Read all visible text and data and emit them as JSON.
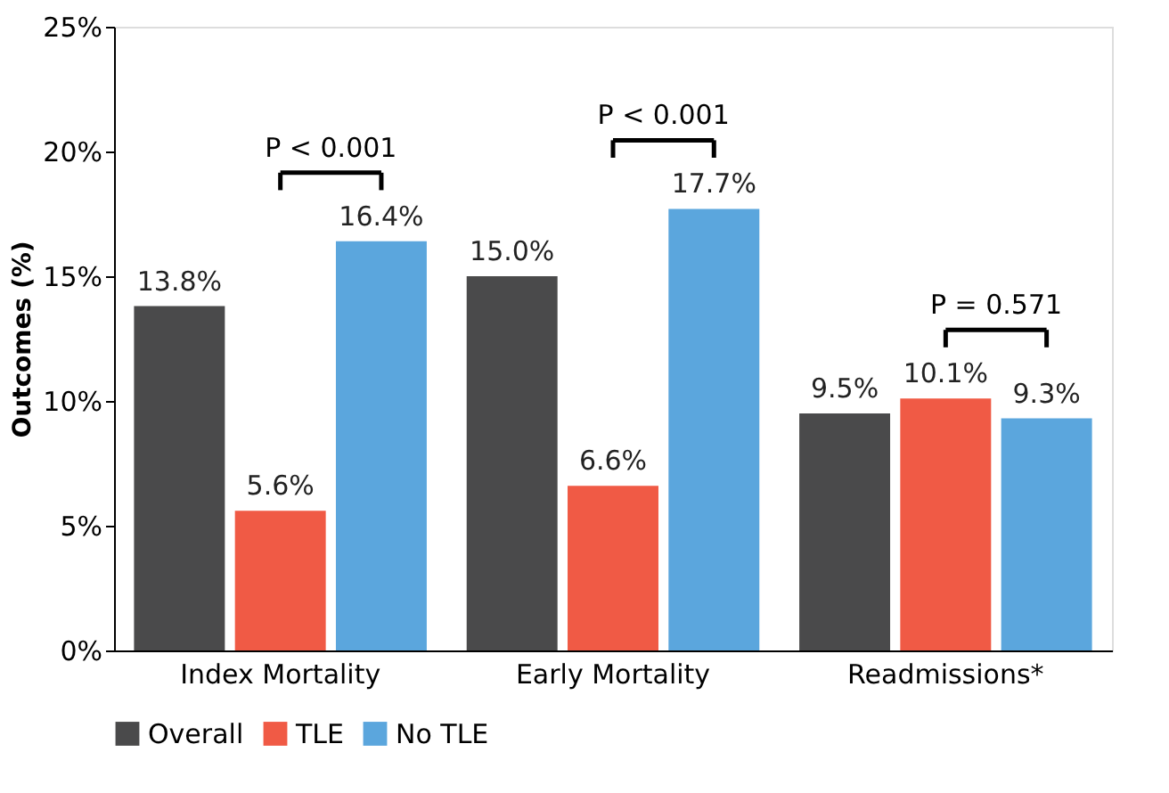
{
  "chart_data": {
    "type": "bar",
    "ylabel": "Outcomes (%)",
    "categories": [
      "Index Mortality",
      "Early Mortality",
      "Readmissions*"
    ],
    "series": [
      {
        "name": "Overall",
        "color": "#4a4a4b",
        "values": [
          13.8,
          15.0,
          9.5
        ],
        "value_labels": [
          "13.8%",
          "15.0%",
          "9.5%"
        ]
      },
      {
        "name": "TLE",
        "color": "#f05a45",
        "values": [
          5.6,
          6.6,
          10.1
        ],
        "value_labels": [
          "5.6%",
          "6.6%",
          "10.1%"
        ]
      },
      {
        "name": "No TLE",
        "color": "#5ba6dd",
        "values": [
          16.4,
          17.7,
          9.3
        ],
        "value_labels": [
          "16.4%",
          "17.7%",
          "9.3%"
        ]
      }
    ],
    "ylim": [
      0,
      25
    ],
    "yticks": [
      {
        "value": 0,
        "label": "0%"
      },
      {
        "value": 5,
        "label": "5%"
      },
      {
        "value": 10,
        "label": "10%"
      },
      {
        "value": 15,
        "label": "15%"
      },
      {
        "value": 20,
        "label": "20%"
      },
      {
        "value": 25,
        "label": "25%"
      }
    ],
    "annotations": [
      "P < 0.001",
      "P < 0.001",
      "P = 0.571"
    ],
    "grid": false,
    "legend": "bottom"
  }
}
